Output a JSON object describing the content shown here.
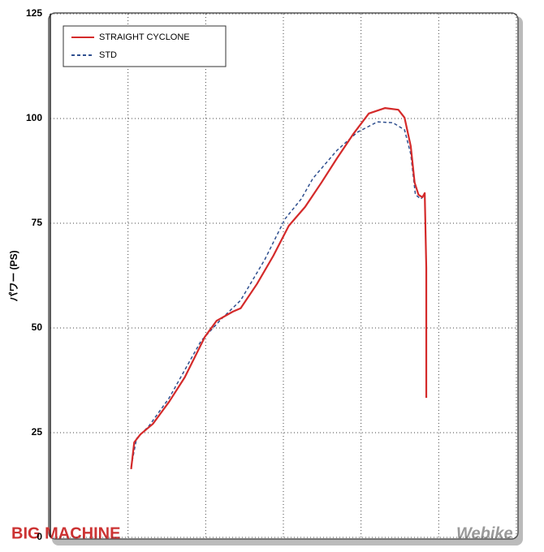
{
  "chart_data": {
    "type": "line",
    "ylabel": "パワー (PS)",
    "ylim": [
      0,
      125
    ],
    "yticks": [
      0,
      25,
      50,
      75,
      100,
      125
    ],
    "xlim": [
      0,
      6
    ],
    "xticks": [
      0,
      1,
      2,
      3,
      4,
      5,
      6
    ],
    "grid": true,
    "legend": "upper left",
    "annotations": [
      "BIG MACHINE",
      "Webike"
    ],
    "series": [
      {
        "name": "STRAIGHT CYCLONE",
        "color": "#d42a2a",
        "linestyle": "solid",
        "x": [
          1.04,
          1.08,
          1.16,
          1.32,
          1.53,
          1.73,
          1.99,
          2.14,
          2.35,
          2.45,
          2.66,
          2.87,
          3.07,
          3.28,
          3.49,
          3.69,
          3.9,
          4.1,
          4.31,
          4.48,
          4.56,
          4.64,
          4.69,
          4.74,
          4.79,
          4.82,
          4.84,
          4.84
        ],
        "values": [
          16.3,
          22.7,
          24.6,
          27.1,
          32.4,
          38.2,
          47.9,
          51.7,
          53.9,
          54.7,
          60.5,
          67.2,
          74.4,
          78.9,
          84.7,
          90.5,
          96.3,
          101.2,
          102.5,
          102.1,
          100.2,
          93.4,
          84.7,
          81.8,
          81.2,
          82.2,
          64.3,
          33.3
        ]
      },
      {
        "name": "STD",
        "color": "#2f4f8f",
        "linestyle": "dashed",
        "x": [
          1.04,
          1.11,
          1.27,
          1.53,
          1.94,
          2.2,
          2.45,
          2.76,
          3.02,
          3.23,
          3.38,
          3.69,
          3.95,
          4.21,
          4.41,
          4.56,
          4.64,
          4.7,
          4.77,
          4.82
        ],
        "values": [
          16.9,
          23.6,
          26.6,
          33.3,
          46.9,
          52.1,
          56.6,
          66.3,
          76.0,
          80.8,
          85.7,
          92.4,
          96.7,
          99.2,
          99.0,
          97.3,
          91.5,
          81.8,
          80.8,
          81.8
        ]
      }
    ]
  }
}
